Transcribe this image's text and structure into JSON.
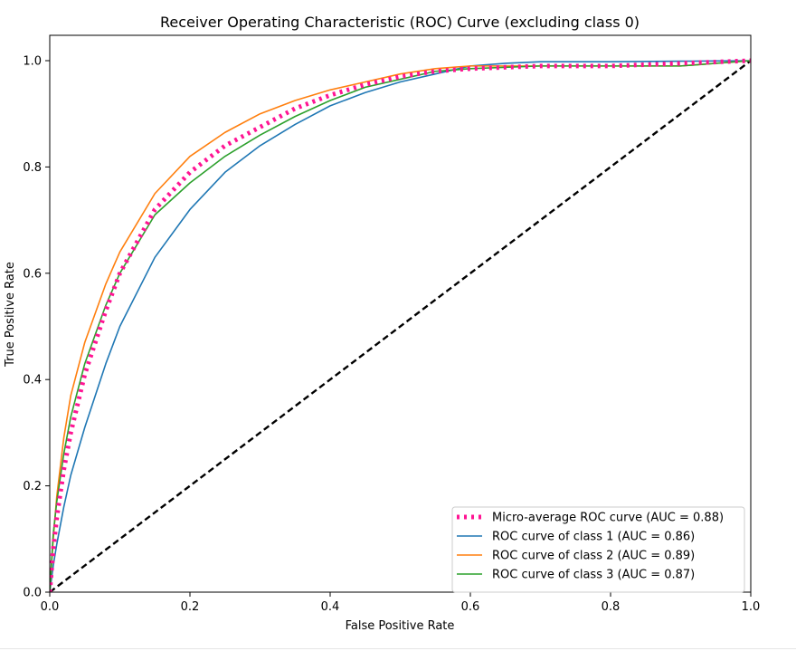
{
  "chart_data": {
    "type": "line",
    "title": "Receiver Operating Characteristic (ROC) Curve (excluding class 0)",
    "xlabel": "False Positive Rate",
    "ylabel": "True Positive Rate",
    "xlim": [
      0.0,
      1.0
    ],
    "ylim": [
      0.0,
      1.05
    ],
    "xticks": [
      "0.0",
      "0.2",
      "0.4",
      "0.6",
      "0.8",
      "1.0"
    ],
    "yticks": [
      "0.0",
      "0.2",
      "0.4",
      "0.6",
      "0.8",
      "1.0"
    ],
    "grid": false,
    "legend_position": "lower-right",
    "series": [
      {
        "name": "Micro-average ROC curve (AUC = 0.88)",
        "color": "#ff1493",
        "style": "dotted",
        "x": [
          0.0,
          0.005,
          0.01,
          0.02,
          0.03,
          0.05,
          0.08,
          0.1,
          0.15,
          0.2,
          0.25,
          0.3,
          0.35,
          0.4,
          0.45,
          0.5,
          0.55,
          0.6,
          0.7,
          0.8,
          0.9,
          1.0
        ],
        "y": [
          0.0,
          0.08,
          0.14,
          0.23,
          0.3,
          0.41,
          0.53,
          0.6,
          0.72,
          0.79,
          0.84,
          0.875,
          0.91,
          0.935,
          0.955,
          0.97,
          0.98,
          0.985,
          0.99,
          0.99,
          0.995,
          1.0
        ]
      },
      {
        "name": "ROC curve of class 1 (AUC = 0.86)",
        "color": "#1f77b4",
        "style": "solid",
        "x": [
          0.0,
          0.005,
          0.01,
          0.02,
          0.03,
          0.05,
          0.08,
          0.1,
          0.15,
          0.2,
          0.25,
          0.3,
          0.35,
          0.4,
          0.45,
          0.5,
          0.55,
          0.6,
          0.65,
          0.7,
          0.8,
          0.9,
          1.0
        ],
        "y": [
          0.0,
          0.05,
          0.09,
          0.16,
          0.22,
          0.31,
          0.43,
          0.5,
          0.63,
          0.72,
          0.79,
          0.84,
          0.88,
          0.915,
          0.94,
          0.96,
          0.975,
          0.99,
          0.995,
          0.998,
          0.998,
          0.999,
          1.0
        ]
      },
      {
        "name": "ROC curve of class 2 (AUC = 0.89)",
        "color": "#ff7f0e",
        "style": "solid",
        "x": [
          0.0,
          0.005,
          0.01,
          0.02,
          0.03,
          0.05,
          0.08,
          0.1,
          0.15,
          0.2,
          0.25,
          0.3,
          0.35,
          0.4,
          0.45,
          0.5,
          0.55,
          0.6,
          0.7,
          0.8,
          0.9,
          1.0
        ],
        "y": [
          0.0,
          0.1,
          0.18,
          0.29,
          0.37,
          0.47,
          0.58,
          0.64,
          0.75,
          0.82,
          0.865,
          0.9,
          0.925,
          0.945,
          0.96,
          0.975,
          0.985,
          0.99,
          0.99,
          0.99,
          0.99,
          1.0
        ]
      },
      {
        "name": "ROC curve of class 3 (AUC = 0.87)",
        "color": "#2ca02c",
        "style": "solid",
        "x": [
          0.0,
          0.005,
          0.01,
          0.02,
          0.03,
          0.05,
          0.08,
          0.1,
          0.15,
          0.2,
          0.25,
          0.3,
          0.35,
          0.4,
          0.45,
          0.5,
          0.55,
          0.6,
          0.7,
          0.8,
          0.9,
          1.0
        ],
        "y": [
          0.0,
          0.11,
          0.17,
          0.26,
          0.33,
          0.43,
          0.54,
          0.6,
          0.71,
          0.77,
          0.82,
          0.86,
          0.895,
          0.925,
          0.95,
          0.965,
          0.98,
          0.985,
          0.99,
          0.99,
          0.99,
          1.0
        ]
      },
      {
        "name": "",
        "color": "#000000",
        "style": "dashed",
        "x": [
          0.0,
          1.0
        ],
        "y": [
          0.0,
          1.0
        ]
      }
    ]
  }
}
